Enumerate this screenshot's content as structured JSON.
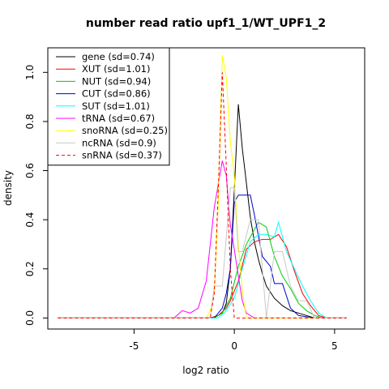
{
  "chart_data": {
    "type": "line",
    "title": "number read ratio upf1_1/WT_UPF1_2",
    "xlabel": "log2 ratio",
    "ylabel": "density",
    "xlim": [
      -9.3,
      6.5
    ],
    "ylim": [
      -0.045,
      1.1
    ],
    "xticks": [
      -5,
      0,
      5
    ],
    "xtick_labels": [
      "-5",
      "0",
      "5"
    ],
    "yticks": [
      0.0,
      0.2,
      0.4,
      0.6,
      0.8,
      1.0
    ],
    "ytick_labels": [
      "0.0",
      "0.2",
      "0.4",
      "0.6",
      "0.8",
      "1.0"
    ],
    "grid": false,
    "legend_position": "top-left",
    "series": [
      {
        "name": "gene (sd=0.74)",
        "color": "#000000",
        "dash": false,
        "x": [
          -8.8,
          -2.0,
          -1.4,
          -1.2,
          -0.8,
          -0.6,
          -0.4,
          -0.2,
          0.0,
          0.2,
          0.4,
          0.6,
          0.8,
          1.0,
          1.2,
          1.4,
          1.6,
          2.0,
          2.4,
          2.8,
          3.2,
          3.6,
          4.0,
          4.4,
          5.6
        ],
        "y": [
          0.0,
          0.0,
          0.0,
          0.0,
          0.01,
          0.02,
          0.06,
          0.2,
          0.52,
          0.87,
          0.69,
          0.55,
          0.41,
          0.31,
          0.24,
          0.18,
          0.13,
          0.08,
          0.05,
          0.03,
          0.02,
          0.01,
          0.0,
          0.0,
          0.0
        ]
      },
      {
        "name": "XUT (sd=1.01)",
        "color": "#ff0000",
        "dash": false,
        "x": [
          -8.8,
          -1.2,
          -0.8,
          -0.4,
          -0.2,
          0.2,
          0.6,
          1.0,
          1.4,
          1.8,
          2.2,
          2.6,
          3.0,
          3.4,
          3.8,
          4.2,
          4.6,
          5.6
        ],
        "y": [
          0.0,
          0.0,
          0.01,
          0.04,
          0.07,
          0.15,
          0.28,
          0.31,
          0.32,
          0.32,
          0.34,
          0.29,
          0.19,
          0.1,
          0.05,
          0.01,
          0.0,
          0.0
        ],
        "step": false
      },
      {
        "name": "NUT (sd=0.94)",
        "color": "#00cc00",
        "dash": false,
        "x": [
          -8.8,
          -1.0,
          -0.6,
          -0.2,
          0.2,
          0.6,
          1.0,
          1.2,
          1.6,
          2.0,
          2.4,
          2.8,
          3.2,
          3.6,
          4.0,
          4.4,
          5.6
        ],
        "y": [
          0.0,
          0.0,
          0.02,
          0.08,
          0.21,
          0.3,
          0.36,
          0.39,
          0.37,
          0.25,
          0.17,
          0.12,
          0.06,
          0.03,
          0.01,
          0.0,
          0.0
        ]
      },
      {
        "name": "CUT (sd=0.86)",
        "color": "#0000cc",
        "dash": false,
        "x": [
          -8.8,
          -1.0,
          -0.6,
          -0.4,
          -0.2,
          0.0,
          0.2,
          0.4,
          0.8,
          1.0,
          1.4,
          1.8,
          2.0,
          2.4,
          2.8,
          3.2,
          4.0,
          5.6
        ],
        "y": [
          0.0,
          0.0,
          0.04,
          0.1,
          0.2,
          0.47,
          0.5,
          0.5,
          0.5,
          0.42,
          0.25,
          0.21,
          0.14,
          0.14,
          0.04,
          0.01,
          0.0,
          0.0
        ]
      },
      {
        "name": "SUT (sd=1.01)",
        "color": "#00ffff",
        "dash": false,
        "x": [
          -8.8,
          -0.8,
          -0.4,
          0.0,
          0.4,
          0.8,
          1.2,
          1.6,
          2.0,
          2.2,
          2.6,
          3.0,
          3.4,
          3.8,
          4.2,
          4.6,
          5.6
        ],
        "y": [
          0.0,
          0.0,
          0.03,
          0.08,
          0.2,
          0.31,
          0.34,
          0.34,
          0.33,
          0.39,
          0.27,
          0.2,
          0.13,
          0.07,
          0.02,
          0.0,
          0.0
        ]
      },
      {
        "name": "tRNA (sd=0.67)",
        "color": "#ff00ff",
        "dash": false,
        "x": [
          -8.8,
          -3.0,
          -2.6,
          -2.2,
          -1.8,
          -1.4,
          -1.0,
          -0.6,
          -0.4,
          -0.2,
          0.0,
          0.2,
          0.4,
          0.6,
          1.0,
          1.4,
          5.6
        ],
        "y": [
          0.0,
          0.0,
          0.03,
          0.02,
          0.04,
          0.15,
          0.45,
          0.64,
          0.58,
          0.38,
          0.28,
          0.17,
          0.07,
          0.02,
          0.0,
          0.0,
          0.0
        ]
      },
      {
        "name": "snoRNA (sd=0.25)",
        "color": "#ffff00",
        "dash": false,
        "x": [
          -8.8,
          -1.4,
          -1.2,
          -1.0,
          -0.8,
          -0.6,
          -0.4,
          -0.2,
          0.0,
          0.2,
          0.4,
          0.6,
          0.8,
          1.2,
          5.6
        ],
        "y": [
          0.0,
          0.0,
          0.03,
          0.1,
          0.46,
          1.07,
          0.98,
          0.72,
          0.58,
          0.3,
          0.11,
          0.0,
          0.0,
          0.0,
          0.0
        ]
      },
      {
        "name": "ncRNA (sd=0.9)",
        "color": "#c8c8c8",
        "dash": false,
        "x": [
          -8.8,
          -1.2,
          -1.0,
          -0.8,
          -0.6,
          -0.2,
          0.0,
          0.2,
          0.4,
          0.8,
          1.2,
          1.6,
          2.0,
          2.4,
          2.8,
          3.2,
          3.6,
          4.0,
          5.6
        ],
        "y": [
          0.0,
          0.0,
          0.13,
          0.13,
          0.13,
          0.53,
          0.53,
          0.27,
          0.27,
          0.4,
          0.4,
          0.0,
          0.27,
          0.27,
          0.13,
          0.07,
          0.07,
          0.0,
          0.0
        ]
      },
      {
        "name": "snRNA (sd=0.37)",
        "color": "#ff0000",
        "dash": true,
        "x": [
          -8.8,
          -1.4,
          -1.2,
          -1.0,
          -0.8,
          -0.6,
          -0.4,
          -0.2,
          0.0,
          0.2,
          0.4,
          0.6,
          5.6
        ],
        "y": [
          0.0,
          0.0,
          0.0,
          0.1,
          0.52,
          1.0,
          0.62,
          0.2,
          0.0,
          0.0,
          0.0,
          0.0,
          0.0
        ]
      }
    ]
  }
}
